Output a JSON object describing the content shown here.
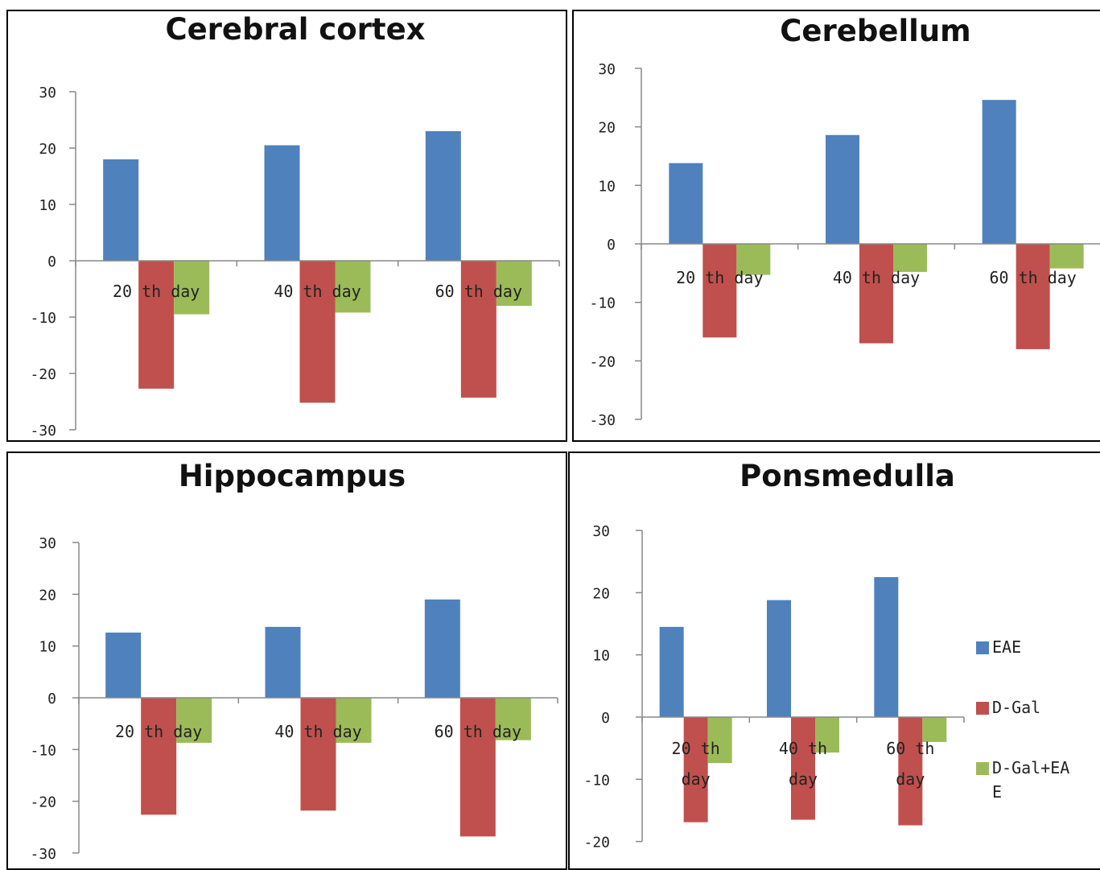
{
  "chart_data": [
    {
      "type": "bar",
      "title": "Cerebral cortex",
      "categories": [
        "20 th day",
        "40 th day",
        "60 th day"
      ],
      "yticks": [
        "30",
        "20",
        "10",
        "0",
        "-10",
        "-20",
        "-30"
      ],
      "ylim": [
        -30,
        30
      ],
      "series": [
        {
          "name": "EAE",
          "values": [
            18,
            20.5,
            23
          ]
        },
        {
          "name": "D-Gal",
          "values": [
            -22.7,
            -25.2,
            -24.3
          ]
        },
        {
          "name": "D-Gal+EAE",
          "values": [
            -9.5,
            -9.2,
            -8
          ]
        }
      ]
    },
    {
      "type": "bar",
      "title": "Cerebellum",
      "categories": [
        "20 th day",
        "40 th day",
        "60 th day"
      ],
      "yticks": [
        "30",
        "20",
        "10",
        "0",
        "-10",
        "-20",
        "-30"
      ],
      "ylim": [
        -30,
        30
      ],
      "series": [
        {
          "name": "EAE",
          "values": [
            13.8,
            18.6,
            24.6
          ]
        },
        {
          "name": "D-Gal",
          "values": [
            -16,
            -17,
            -18
          ]
        },
        {
          "name": "D-Gal+EAE",
          "values": [
            -5.3,
            -4.8,
            -4.2
          ]
        }
      ]
    },
    {
      "type": "bar",
      "title": "Hippocampus",
      "categories": [
        "20 th day",
        "40 th day",
        "60 th day"
      ],
      "yticks": [
        "30",
        "20",
        "10",
        "0",
        "-10",
        "-20",
        "-30"
      ],
      "ylim": [
        -30,
        30
      ],
      "series": [
        {
          "name": "EAE",
          "values": [
            12.6,
            13.7,
            19
          ]
        },
        {
          "name": "D-Gal",
          "values": [
            -22.6,
            -21.8,
            -26.8
          ]
        },
        {
          "name": "D-Gal+EAE",
          "values": [
            -8.7,
            -8.7,
            -8.2
          ]
        }
      ]
    },
    {
      "type": "bar",
      "title": "Ponsmedulla",
      "categories": [
        "20 th day",
        "40 th day",
        "60 th day"
      ],
      "yticks": [
        "30",
        "20",
        "10",
        "0",
        "-10",
        "-20"
      ],
      "ylim": [
        -20,
        30
      ],
      "legend_position": "right",
      "legend": [
        "EAE",
        "D-Gal",
        "D-Gal+EAE"
      ],
      "series": [
        {
          "name": "EAE",
          "values": [
            14.5,
            18.8,
            22.5
          ]
        },
        {
          "name": "D-Gal",
          "values": [
            -16.9,
            -16.5,
            -17.4
          ]
        },
        {
          "name": "D-Gal+EAE",
          "values": [
            -7.4,
            -5.7,
            -4
          ]
        }
      ]
    }
  ],
  "colors": {
    "EAE": "#4F81BD",
    "D-Gal": "#C0504D",
    "D-Gal+EAE": "#9BBB59"
  }
}
